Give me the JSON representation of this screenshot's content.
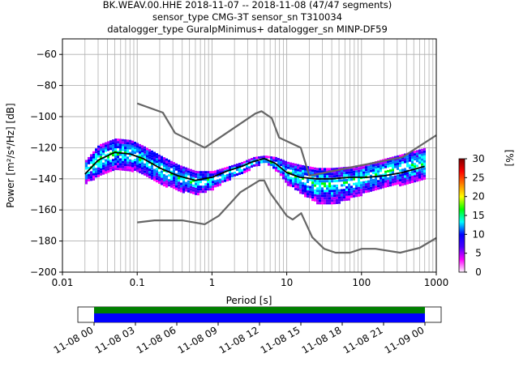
{
  "title_lines": [
    "BK.WEAV.00.HHE   2018-11-07 -- 2018-11-08  (47/47 segments)",
    "sensor_type CMG-3T sensor_sn T310034",
    "datalogger_type GuralpMinimus+ datalogger_sn MINP-DF59"
  ],
  "colorbar": {
    "label": "[%]",
    "ticks": [
      "0",
      "5",
      "10",
      "15",
      "20",
      "25",
      "30"
    ],
    "range": [
      0,
      30
    ],
    "colors": [
      "#ffffff",
      "#ff00ff",
      "#4b00ff",
      "#0000ff",
      "#00ffff",
      "#00ff00",
      "#ffff00",
      "#ff8000",
      "#ff0000",
      "#800000"
    ]
  },
  "timeline": {
    "tick_labels": [
      "11-08 00",
      "11-08 03",
      "11-08 06",
      "11-08 09",
      "11-08 12",
      "11-08 15",
      "11-08 18",
      "11-08 21",
      "11-09 00"
    ],
    "coverage_color": "#008000",
    "data_color": "#0000ff"
  },
  "chart_data": {
    "type": "heatmap",
    "xlabel": "Period [s]",
    "ylabel": "Power [m²/s⁴/Hz] [dB]",
    "xscale": "log",
    "xlim": [
      0.01,
      1000
    ],
    "ylim": [
      -200,
      -50
    ],
    "x_ticks": [
      0.01,
      0.1,
      1,
      10,
      100,
      1000
    ],
    "x_tick_labels": [
      "0.01",
      "0.1",
      "1",
      "10",
      "100",
      "1000"
    ],
    "y_ticks": [
      -200,
      -180,
      -160,
      -140,
      -120,
      -100,
      -80,
      -60
    ],
    "y_tick_labels": [
      "−200",
      "−180",
      "−160",
      "−140",
      "−120",
      "−100",
      "−80",
      "−60"
    ],
    "grid": true,
    "series": [
      {
        "role": "mode",
        "color": "#000000",
        "x": [
          0.02,
          0.03,
          0.05,
          0.08,
          0.12,
          0.2,
          0.35,
          0.6,
          1.0,
          1.6,
          2.5,
          3.5,
          5.0,
          7.0,
          10,
          15,
          25,
          40,
          70,
          120,
          200,
          350,
          700
        ],
        "y": [
          -137,
          -128,
          -123,
          -124,
          -127,
          -133,
          -138,
          -141,
          -139,
          -135,
          -132,
          -129,
          -127,
          -130,
          -136,
          -139,
          -140,
          -140,
          -139,
          -139,
          -138,
          -136,
          -132
        ]
      },
      {
        "role": "noise_model_high",
        "color": "#666666",
        "x": [
          0.1,
          0.22,
          0.32,
          0.8,
          3.8,
          4.6,
          6.3,
          7.9,
          15.4,
          20,
          354.8,
          1000
        ],
        "y": [
          -91.5,
          -97.4,
          -110.5,
          -120,
          -98,
          -96.5,
          -101,
          -113.5,
          -120,
          -138,
          -126,
          -112
        ]
      },
      {
        "role": "noise_model_low",
        "color": "#666666",
        "x": [
          0.1,
          0.17,
          0.4,
          0.8,
          1.24,
          2.4,
          4.3,
          5.0,
          6.0,
          10,
          12,
          15.6,
          21.9,
          31.6,
          45,
          70,
          101,
          154,
          328,
          600,
          1000
        ],
        "y": [
          -168,
          -166.7,
          -166.7,
          -169.2,
          -163.7,
          -148.6,
          -141.1,
          -141.1,
          -149,
          -163.8,
          -166.2,
          -162.1,
          -177.5,
          -185,
          -187.5,
          -187.5,
          -185,
          -185,
          -187.5,
          -184.4,
          -178
        ]
      }
    ],
    "density": [
      {
        "x": [
          0.02,
          0.03,
          0.05,
          0.08,
          0.12,
          0.2,
          0.35,
          0.6,
          1.0,
          1.6,
          2.5,
          3.5,
          5.0,
          7.0,
          10,
          15,
          25,
          40,
          70,
          120,
          200,
          350,
          700
        ],
        "upper": [
          -128,
          -118,
          -114,
          -115,
          -119,
          -125,
          -131,
          -135,
          -135,
          -132,
          -129,
          -126,
          -125,
          -126,
          -129,
          -131,
          -133,
          -133,
          -132,
          -130,
          -127,
          -124,
          -120
        ],
        "lower": [
          -142,
          -138,
          -133,
          -134,
          -137,
          -143,
          -147,
          -150,
          -146,
          -140,
          -136,
          -132,
          -129,
          -134,
          -143,
          -149,
          -155,
          -156,
          -152,
          -148,
          -145,
          -143,
          -140
        ]
      }
    ]
  }
}
